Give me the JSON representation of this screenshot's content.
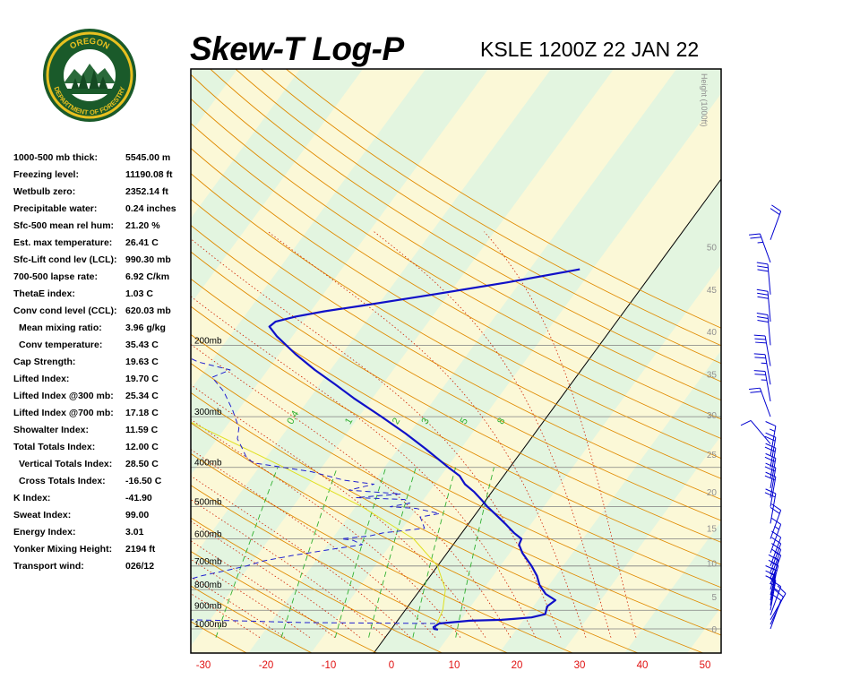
{
  "header": {
    "title": "Skew-T Log-P",
    "station": "KSLE 1200Z 22 JAN 22"
  },
  "logo": {
    "top_text": "OREGON",
    "bottom_text": "DEPARTMENT OF FORESTRY"
  },
  "stats": [
    {
      "label": "1000-500 mb thick:",
      "value": "5545.00 m"
    },
    {
      "label": "Freezing level:",
      "value": "11190.08 ft"
    },
    {
      "label": "Wetbulb zero:",
      "value": "2352.14 ft"
    },
    {
      "label": "Precipitable water:",
      "value": "0.24 inches"
    },
    {
      "label": "Sfc-500 mean rel hum:",
      "value": "21.20 %"
    },
    {
      "label": "Est. max temperature:",
      "value": "26.41 C"
    },
    {
      "label": "Sfc-Lift cond lev (LCL):",
      "value": "990.30 mb"
    },
    {
      "label": "700-500 lapse rate:",
      "value": "6.92 C/km"
    },
    {
      "label": "ThetaE index:",
      "value": "1.03 C"
    },
    {
      "label": "Conv cond level (CCL):",
      "value": "620.03 mb"
    },
    {
      "label": "Mean mixing ratio:",
      "value": "3.96 g/kg",
      "indent": true
    },
    {
      "label": "Conv temperature:",
      "value": "35.43 C",
      "indent": true
    },
    {
      "label": "Cap Strength:",
      "value": "19.63 C"
    },
    {
      "label": "Lifted Index:",
      "value": "19.70 C"
    },
    {
      "label": "Lifted Index @300 mb:",
      "value": "25.34 C"
    },
    {
      "label": "Lifted Index @700 mb:",
      "value": "17.18 C"
    },
    {
      "label": "Showalter Index:",
      "value": "11.59 C"
    },
    {
      "label": "Total Totals Index:",
      "value": "12.00 C"
    },
    {
      "label": "Vertical Totals Index:",
      "value": "28.50 C",
      "indent": true
    },
    {
      "label": "Cross Totals Index:",
      "value": "-16.50 C",
      "indent": true
    },
    {
      "label": "K Index:",
      "value": "-41.90"
    },
    {
      "label": "Sweat Index:",
      "value": "99.00"
    },
    {
      "label": "Energy Index:",
      "value": "3.01"
    },
    {
      "label": "Yonker Mixing Height:",
      "value": "2194 ft"
    },
    {
      "label": "Transport wind:",
      "value": "026/12"
    }
  ],
  "colors": {
    "temperature": "#1010c8",
    "dewpoint": "#2020d0",
    "parcel": "#e0e020",
    "dry_adiabat": "#e08a00",
    "moist_adiabat": "#d02000",
    "mixing_ratio": "#30b030",
    "isobar": "#808080",
    "isotherm_zero": "#000000",
    "band_green": "#e3f5e0",
    "band_yellow": "#fbf8d7",
    "height_label": "#909090",
    "x_tick": "#e01010",
    "wind_barb": "#0000d0"
  },
  "chart_data": {
    "type": "line",
    "title": "Skew-T Log-P",
    "xlabel": "",
    "ylabel": "Height (1000ft)",
    "x_ticks": [
      -30,
      -20,
      -10,
      0,
      10,
      20,
      30,
      40,
      50
    ],
    "xlim": [
      -31,
      52
    ],
    "p_range": [
      1050,
      100
    ],
    "isobars": [
      {
        "p": 1000,
        "label": "1000mb"
      },
      {
        "p": 900,
        "label": "900mb"
      },
      {
        "p": 800,
        "label": "800mb"
      },
      {
        "p": 700,
        "label": "700mb"
      },
      {
        "p": 600,
        "label": "600mb"
      },
      {
        "p": 500,
        "label": "500mb"
      },
      {
        "p": 400,
        "label": "400mb"
      },
      {
        "p": 300,
        "label": "300mb"
      },
      {
        "p": 200,
        "label": "200mb"
      }
    ],
    "height_ticks": [
      0,
      5,
      10,
      15,
      20,
      25,
      30,
      35,
      40,
      45,
      50
    ],
    "height_axis_label": "Height (1000ft)",
    "mixing_ratio_labels": [
      {
        "label": "0.4",
        "value": 0.4
      },
      {
        "label": "1",
        "value": 1
      },
      {
        "label": "2",
        "value": 2
      },
      {
        "label": "3",
        "value": 3
      },
      {
        "label": "5",
        "value": 5
      },
      {
        "label": "8",
        "value": 8
      }
    ],
    "series": [
      {
        "points": [
          [
            1004,
            7.5
          ],
          [
            1000,
            6.8
          ],
          [
            990,
            6.5
          ],
          [
            970,
            7.0
          ],
          [
            955,
            11.5
          ],
          [
            950,
            16.5
          ],
          [
            945,
            18.3
          ],
          [
            937,
            21.0
          ],
          [
            920,
            22.8
          ],
          [
            900,
            22.5
          ],
          [
            880,
            22.2
          ],
          [
            850,
            22.8
          ],
          [
            820,
            20.5
          ],
          [
            780,
            18.5
          ],
          [
            740,
            17.0
          ],
          [
            700,
            15.0
          ],
          [
            650,
            12.0
          ],
          [
            620,
            10.5
          ],
          [
            600,
            10.2
          ],
          [
            580,
            8.3
          ],
          [
            550,
            5.8
          ],
          [
            520,
            3.0
          ],
          [
            500,
            1.0
          ],
          [
            480,
            -0.8
          ],
          [
            460,
            -2.8
          ],
          [
            440,
            -5.2
          ],
          [
            420,
            -7.0
          ],
          [
            400,
            -9.8
          ],
          [
            360,
            -15.6
          ],
          [
            330,
            -20.6
          ],
          [
            300,
            -26.4
          ],
          [
            270,
            -33.0
          ],
          [
            250,
            -37.5
          ],
          [
            230,
            -42.5
          ],
          [
            210,
            -47.5
          ],
          [
            190,
            -52.5
          ],
          [
            180,
            -54.8
          ],
          [
            175,
            -54.4
          ],
          [
            170,
            -51.8
          ],
          [
            165,
            -47.8
          ],
          [
            160,
            -42.7
          ],
          [
            155,
            -37.6
          ],
          [
            150,
            -32.5
          ],
          [
            140,
            -22.0
          ],
          [
            130,
            -12.0
          ]
        ]
      },
      {
        "points": [
          [
            1004,
            7.5
          ],
          [
            1000,
            7.0
          ],
          [
            970,
            6.5
          ],
          [
            965,
            -14.5
          ],
          [
            955,
            -26.0
          ],
          [
            945,
            -39.5
          ],
          [
            930,
            -45.5
          ],
          [
            920,
            -44.3
          ],
          [
            900,
            -45.0
          ],
          [
            880,
            -46.0
          ],
          [
            860,
            -46.5
          ],
          [
            830,
            -46.5
          ],
          [
            800,
            -44.5
          ],
          [
            760,
            -38.5
          ],
          [
            740,
            -36.5
          ],
          [
            720,
            -33.5
          ],
          [
            700,
            -30.5
          ],
          [
            680,
            -28.3
          ],
          [
            660,
            -24.5
          ],
          [
            640,
            -19.7
          ],
          [
            620,
            -14.5
          ],
          [
            605,
            -16.5
          ],
          [
            600,
            -18.5
          ],
          [
            590,
            -14.3
          ],
          [
            580,
            -12.5
          ],
          [
            565,
            -6.5
          ],
          [
            545,
            -7.6
          ],
          [
            530,
            -8.5
          ],
          [
            520,
            -5.8
          ],
          [
            505,
            -10.1
          ],
          [
            500,
            -14.5
          ],
          [
            490,
            -11.8
          ],
          [
            480,
            -13.0
          ],
          [
            475,
            -21.0
          ],
          [
            465,
            -14.3
          ],
          [
            455,
            -23.0
          ],
          [
            440,
            -19.7
          ],
          [
            430,
            -25.0
          ],
          [
            410,
            -31.1
          ],
          [
            390,
            -41.3
          ],
          [
            380,
            -43.0
          ],
          [
            360,
            -44.8
          ],
          [
            340,
            -46.8
          ],
          [
            320,
            -47.8
          ],
          [
            290,
            -50.8
          ],
          [
            260,
            -54.5
          ],
          [
            240,
            -58.0
          ],
          [
            230,
            -56.0
          ],
          [
            220,
            -62.0
          ],
          [
            210,
            -65.7
          ],
          [
            200,
            -69.5
          ],
          [
            185,
            -70.0
          ],
          [
            172,
            -70.0
          ],
          [
            165,
            -69.2
          ],
          [
            160,
            -70.5
          ],
          [
            148,
            -73.5
          ],
          [
            140,
            -77.5
          ],
          [
            125,
            -82.7
          ],
          [
            110,
            -86.7
          ]
        ]
      },
      {
        "points": [
          [
            1004,
            7.5
          ],
          [
            990,
            6.8
          ],
          [
            900,
            6.0
          ],
          [
            800,
            4.0
          ],
          [
            700,
            0.0
          ],
          [
            600,
            -7.0
          ],
          [
            500,
            -19.0
          ],
          [
            400,
            -36.0
          ],
          [
            310,
            -56.0
          ]
        ]
      }
    ],
    "wind_barbs": [
      {
        "p": 1000,
        "dir": 20,
        "kt": 10
      },
      {
        "p": 975,
        "dir": 25,
        "kt": 10
      },
      {
        "p": 950,
        "dir": 30,
        "kt": 10
      },
      {
        "p": 925,
        "dir": 20,
        "kt": 15
      },
      {
        "p": 900,
        "dir": 10,
        "kt": 15
      },
      {
        "p": 875,
        "dir": 10,
        "kt": 15
      },
      {
        "p": 850,
        "dir": 10,
        "kt": 15
      },
      {
        "p": 825,
        "dir": 15,
        "kt": 15
      },
      {
        "p": 800,
        "dir": 15,
        "kt": 15
      },
      {
        "p": 775,
        "dir": 20,
        "kt": 15
      },
      {
        "p": 750,
        "dir": 20,
        "kt": 15
      },
      {
        "p": 725,
        "dir": 20,
        "kt": 10
      },
      {
        "p": 700,
        "dir": 20,
        "kt": 10
      },
      {
        "p": 650,
        "dir": 20,
        "kt": 15
      },
      {
        "p": 600,
        "dir": 20,
        "kt": 20
      },
      {
        "p": 550,
        "dir": 10,
        "kt": 20
      },
      {
        "p": 500,
        "dir": 10,
        "kt": 20
      },
      {
        "p": 475,
        "dir": 10,
        "kt": 20
      },
      {
        "p": 450,
        "dir": 10,
        "kt": 20
      },
      {
        "p": 425,
        "dir": 10,
        "kt": 20
      },
      {
        "p": 400,
        "dir": 10,
        "kt": 20
      },
      {
        "p": 375,
        "dir": 10,
        "kt": 15
      },
      {
        "p": 350,
        "dir": 320,
        "kt": 10
      },
      {
        "p": 300,
        "dir": 340,
        "kt": 20
      },
      {
        "p": 275,
        "dir": 350,
        "kt": 25
      },
      {
        "p": 250,
        "dir": 350,
        "kt": 25
      },
      {
        "p": 225,
        "dir": 350,
        "kt": 30
      },
      {
        "p": 200,
        "dir": 355,
        "kt": 30
      },
      {
        "p": 175,
        "dir": 355,
        "kt": 30
      },
      {
        "p": 150,
        "dir": 355,
        "kt": 30
      },
      {
        "p": 125,
        "dir": 340,
        "kt": 25
      },
      {
        "p": 110,
        "dir": 20,
        "kt": 20
      }
    ]
  }
}
